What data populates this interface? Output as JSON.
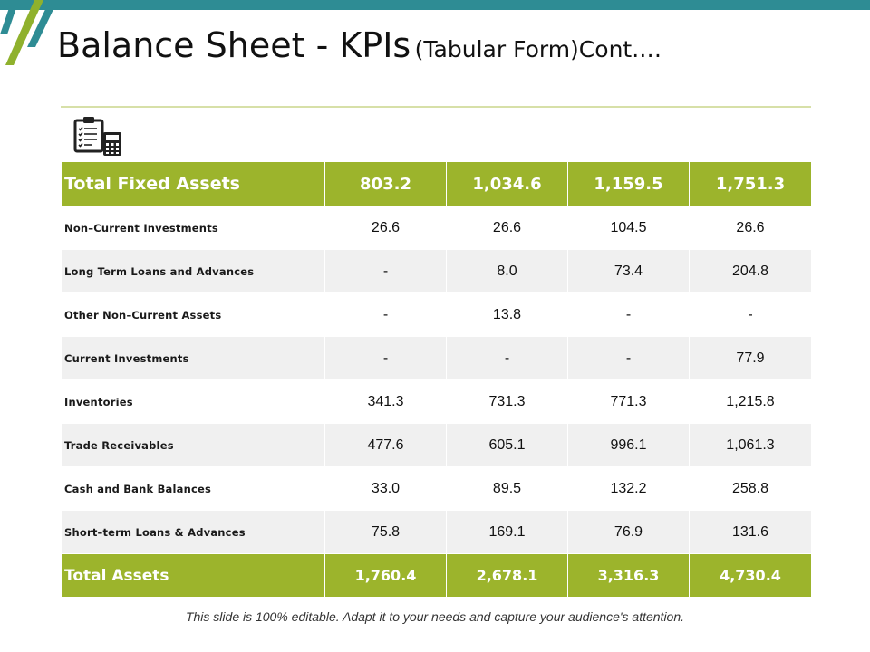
{
  "title": {
    "main": "Balance Sheet - KPIs",
    "sub": "(Tabular Form)Cont.…"
  },
  "icon": "clipboard-calculator-icon",
  "colors": {
    "accent_green": "#9cb42c",
    "top_bar_teal": "#2e8c94",
    "stripe_green": "#8fb12d",
    "stripe_teal": "#2e8c94",
    "alt_row": "#f0f0f0"
  },
  "table": {
    "header": {
      "label": "Total Fixed Assets",
      "values": [
        "803.2",
        "1,034.6",
        "1,159.5",
        "1,751.3"
      ]
    },
    "rows": [
      {
        "label": "Non–Current  Investments",
        "values": [
          "26.6",
          "26.6",
          "104.5",
          "26.6"
        ]
      },
      {
        "label": "Long Term Loans and Advances",
        "values": [
          "-",
          "8.0",
          "73.4",
          "204.8"
        ]
      },
      {
        "label": "Other Non–Current  Assets",
        "values": [
          "-",
          "13.8",
          "-",
          "-"
        ]
      },
      {
        "label": "Current Investments",
        "values": [
          "-",
          "-",
          "-",
          "77.9"
        ]
      },
      {
        "label": "Inventories",
        "values": [
          "341.3",
          "731.3",
          "771.3",
          "1,215.8"
        ]
      },
      {
        "label": "Trade Receivables",
        "values": [
          "477.6",
          "605.1",
          "996.1",
          "1,061.3"
        ]
      },
      {
        "label": "Cash and Bank Balances",
        "values": [
          "33.0",
          "89.5",
          "132.2",
          "258.8"
        ]
      },
      {
        "label": "Short–term  Loans & Advances",
        "values": [
          "75.8",
          "169.1",
          "76.9",
          "131.6"
        ]
      }
    ],
    "footer": {
      "label": "Total Assets",
      "values": [
        "1,760.4",
        "2,678.1",
        "3,316.3",
        "4,730.4"
      ]
    }
  },
  "footer_note": "This slide is 100% editable. Adapt it to your needs and capture your audience's attention."
}
